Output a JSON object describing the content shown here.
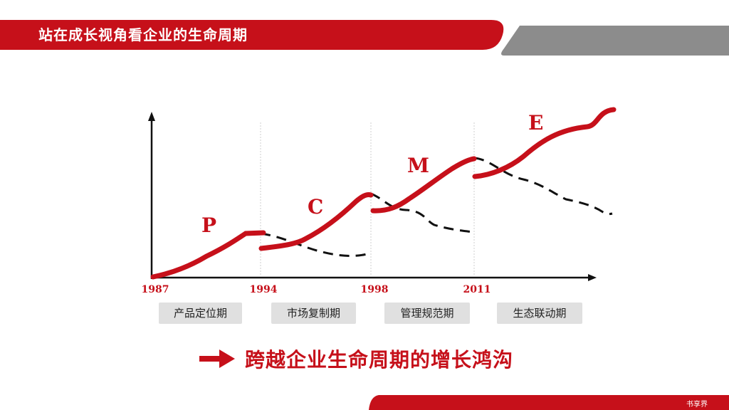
{
  "header": {
    "title": "站在成长视角看企业的生命周期"
  },
  "diagram": {
    "years": [
      "1987",
      "1994",
      "1998",
      "2011"
    ],
    "stage_letters": [
      "P",
      "C",
      "M",
      "E"
    ],
    "phases": [
      "产品定位期",
      "市场复制期",
      "管理规范期",
      "生态联动期"
    ],
    "colors": {
      "growth": "#c6101a",
      "decline": "#111111",
      "accent": "#c6101a",
      "gray_bar": "#8c8c8c"
    }
  },
  "conclusion": {
    "text": "跨越企业生命周期的增长鸿沟"
  },
  "footer": {
    "brand": "书享界"
  }
}
